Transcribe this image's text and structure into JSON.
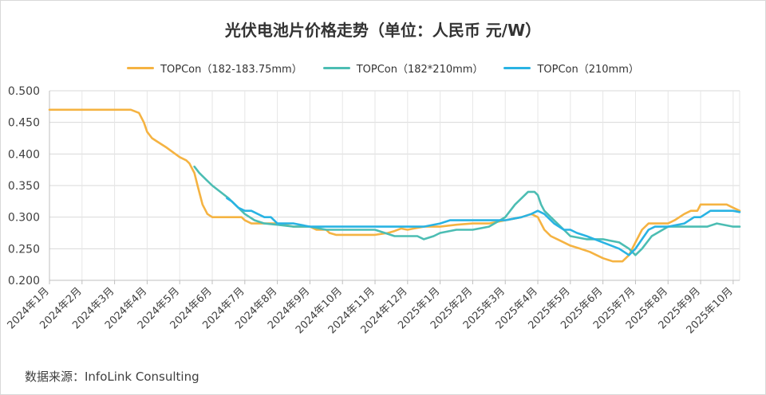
{
  "chart_data": {
    "type": "line",
    "title": "光伏电池片价格走势（单位：人民币 元/W）",
    "xlabel": "",
    "ylabel": "",
    "ylim": [
      0.2,
      0.5
    ],
    "yticks": [
      "0.500",
      "0.450",
      "0.400",
      "0.350",
      "0.300",
      "0.250",
      "0.200"
    ],
    "ytick_values": [
      0.5,
      0.45,
      0.4,
      0.35,
      0.3,
      0.25,
      0.2
    ],
    "x_unit": "months since 2024年1月",
    "xlim": [
      0,
      21.2
    ],
    "categories": [
      "2024年1月",
      "2024年2月",
      "2024年3月",
      "2024年4月",
      "2024年5月",
      "2024年6月",
      "2024年7月",
      "2024年8月",
      "2024年9月",
      "2024年10月",
      "2024年11月",
      "2024年12月",
      "2025年1月",
      "2025年2月",
      "2025年3月",
      "2025年4月",
      "2025年5月",
      "2025年6月",
      "2025年7月",
      "2025年8月",
      "2025年9月",
      "2025年10月"
    ],
    "series": [
      {
        "name": "TOPCon（182-183.75mm）",
        "color": "#f5b342",
        "x": [
          0.0,
          1.0,
          2.0,
          2.5,
          2.75,
          2.9,
          3.0,
          3.15,
          3.3,
          3.6,
          4.0,
          4.2,
          4.3,
          4.45,
          4.55,
          4.7,
          4.85,
          5.0,
          5.5,
          5.9,
          6.0,
          6.2,
          6.5,
          7.0,
          7.5,
          8.0,
          8.2,
          8.5,
          8.6,
          8.8,
          9.0,
          9.2,
          9.5,
          9.8,
          10.0,
          10.4,
          10.6,
          10.8,
          11.0,
          11.2,
          11.5,
          12.0,
          12.5,
          13.0,
          13.5,
          14.0,
          14.5,
          14.8,
          15.0,
          15.2,
          15.4,
          15.6,
          15.8,
          16.0,
          16.3,
          16.6,
          16.8,
          17.0,
          17.3,
          17.6,
          17.8,
          18.0,
          18.2,
          18.4,
          18.6,
          18.8,
          19.0,
          19.2,
          19.5,
          19.7,
          19.9,
          20.0,
          20.5,
          20.8,
          21.0,
          21.2
        ],
        "values": [
          0.47,
          0.47,
          0.47,
          0.47,
          0.465,
          0.45,
          0.435,
          0.425,
          0.42,
          0.41,
          0.395,
          0.39,
          0.385,
          0.37,
          0.35,
          0.32,
          0.305,
          0.3,
          0.3,
          0.3,
          0.295,
          0.29,
          0.29,
          0.29,
          0.285,
          0.285,
          0.28,
          0.28,
          0.275,
          0.272,
          0.272,
          0.272,
          0.272,
          0.272,
          0.272,
          0.275,
          0.278,
          0.282,
          0.28,
          0.282,
          0.285,
          0.285,
          0.288,
          0.29,
          0.29,
          0.295,
          0.3,
          0.305,
          0.3,
          0.28,
          0.27,
          0.265,
          0.26,
          0.255,
          0.25,
          0.245,
          0.24,
          0.235,
          0.23,
          0.23,
          0.24,
          0.26,
          0.28,
          0.29,
          0.29,
          0.29,
          0.29,
          0.295,
          0.305,
          0.31,
          0.31,
          0.32,
          0.32,
          0.32,
          0.315,
          0.31
        ]
      },
      {
        "name": "TOPCon（182*210mm）",
        "color": "#4cbdb3",
        "x": [
          4.45,
          4.6,
          4.8,
          5.0,
          5.5,
          5.8,
          6.0,
          6.3,
          6.6,
          7.0,
          7.5,
          8.0,
          8.5,
          9.0,
          9.5,
          10.0,
          10.3,
          10.6,
          10.8,
          11.0,
          11.3,
          11.5,
          11.8,
          12.0,
          12.5,
          13.0,
          13.5,
          14.0,
          14.3,
          14.5,
          14.7,
          14.9,
          15.0,
          15.1,
          15.2,
          15.4,
          15.6,
          15.8,
          16.0,
          16.5,
          17.0,
          17.5,
          17.8,
          18.0,
          18.2,
          18.5,
          19.0,
          19.5,
          20.0,
          20.2,
          20.5,
          21.0,
          21.2
        ],
        "values": [
          0.38,
          0.37,
          0.36,
          0.35,
          0.33,
          0.315,
          0.305,
          0.295,
          0.29,
          0.288,
          0.285,
          0.285,
          0.28,
          0.28,
          0.28,
          0.28,
          0.275,
          0.27,
          0.27,
          0.27,
          0.27,
          0.265,
          0.27,
          0.275,
          0.28,
          0.28,
          0.285,
          0.3,
          0.32,
          0.33,
          0.34,
          0.34,
          0.335,
          0.32,
          0.31,
          0.3,
          0.29,
          0.28,
          0.27,
          0.265,
          0.265,
          0.26,
          0.25,
          0.24,
          0.25,
          0.27,
          0.285,
          0.285,
          0.285,
          0.285,
          0.29,
          0.285,
          0.285
        ]
      },
      {
        "name": "TOPCon（210mm）",
        "color": "#29b3e3",
        "x": [
          5.45,
          5.6,
          5.8,
          6.0,
          6.2,
          6.4,
          6.6,
          6.8,
          7.0,
          7.5,
          8.0,
          8.2,
          8.5,
          9.0,
          9.5,
          10.0,
          10.5,
          11.0,
          11.5,
          12.0,
          12.3,
          12.6,
          13.0,
          13.5,
          14.0,
          14.5,
          14.8,
          15.0,
          15.2,
          15.5,
          15.8,
          16.0,
          16.2,
          16.5,
          17.0,
          17.5,
          17.8,
          18.0,
          18.2,
          18.4,
          18.6,
          18.8,
          19.0,
          19.5,
          19.8,
          20.0,
          20.3,
          20.6,
          21.0,
          21.2
        ],
        "values": [
          0.33,
          0.325,
          0.315,
          0.31,
          0.31,
          0.305,
          0.3,
          0.3,
          0.29,
          0.29,
          0.285,
          0.285,
          0.285,
          0.285,
          0.285,
          0.285,
          0.285,
          0.285,
          0.285,
          0.29,
          0.295,
          0.295,
          0.295,
          0.295,
          0.295,
          0.3,
          0.305,
          0.31,
          0.305,
          0.29,
          0.28,
          0.28,
          0.275,
          0.27,
          0.26,
          0.25,
          0.24,
          0.25,
          0.265,
          0.28,
          0.285,
          0.285,
          0.285,
          0.29,
          0.3,
          0.3,
          0.31,
          0.31,
          0.31,
          0.308
        ]
      }
    ],
    "source": "数据来源：InfoLink Consulting"
  }
}
